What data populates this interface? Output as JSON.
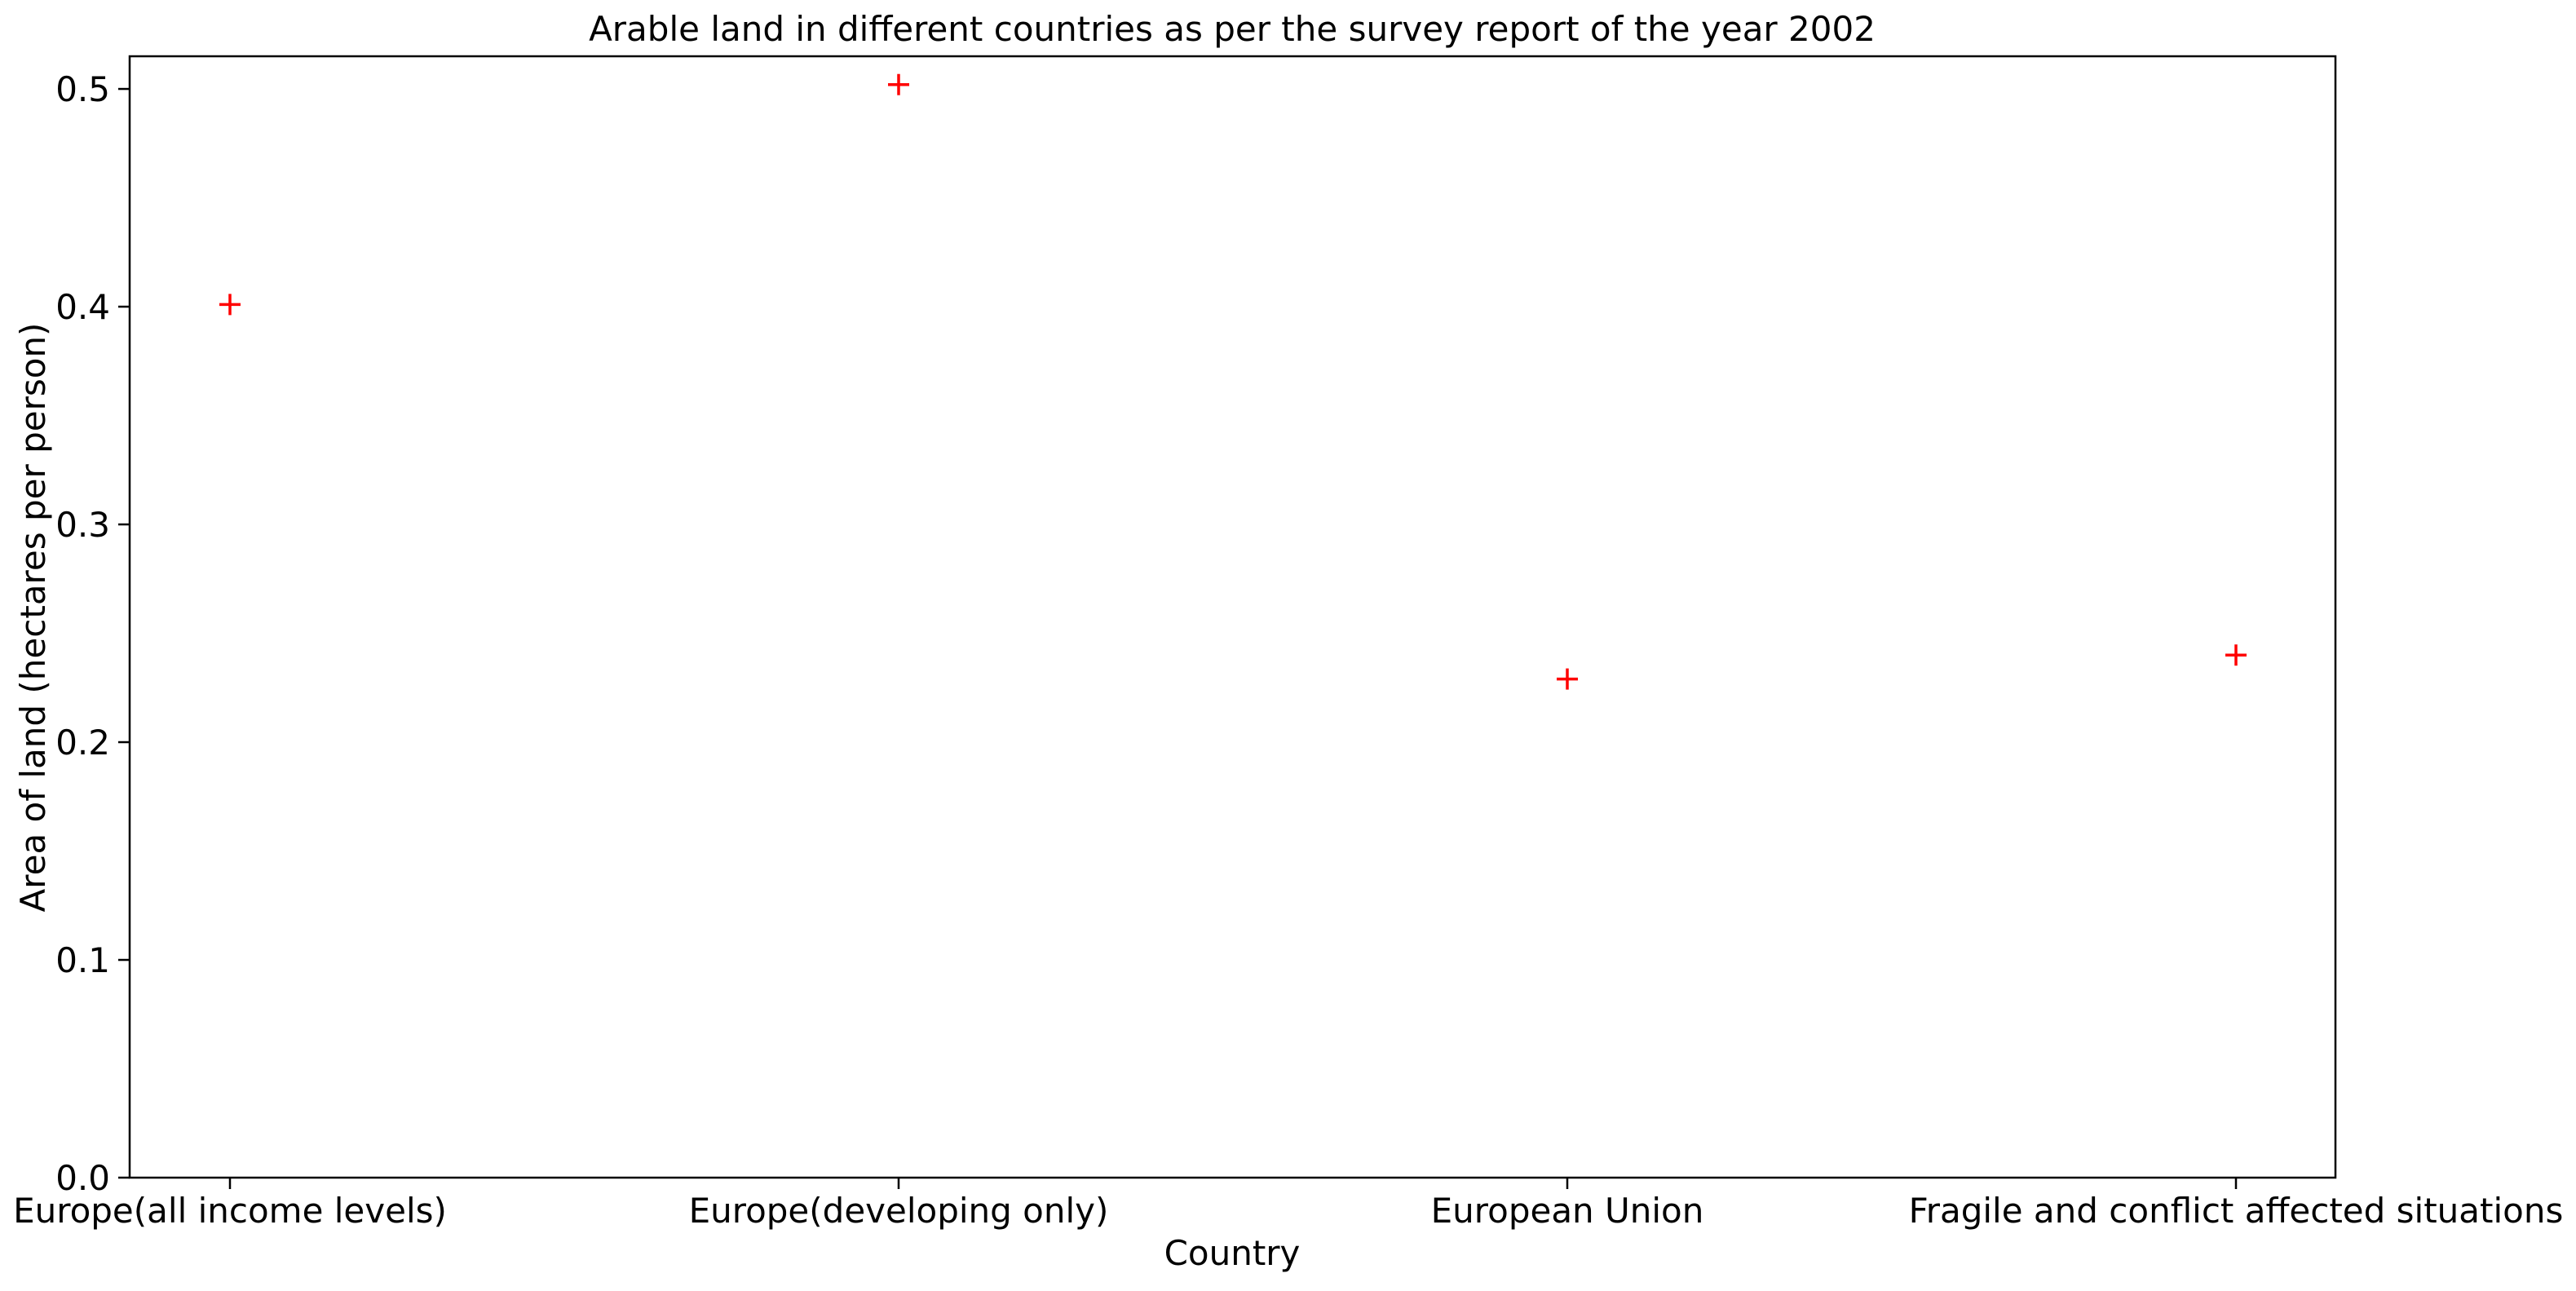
{
  "chart_data": {
    "type": "scatter",
    "title": "Arable land in different countries as per the survey report of the year 2002",
    "xlabel": "Country",
    "ylabel": "Area of land (hectares per person)",
    "categories": [
      "Europe(all income levels)",
      "Europe(developing only)",
      "European Union",
      "Fragile and conflict affected situations"
    ],
    "series": [
      {
        "values": [
          0.401,
          0.502,
          0.229,
          0.24
        ],
        "marker": "+",
        "color": "#ff0000"
      }
    ],
    "ylim": [
      0,
      0.515
    ],
    "yticks": [
      0.0,
      0.1,
      0.2,
      0.3,
      0.4,
      0.5
    ],
    "ytick_labels": [
      "0.0",
      "0.1",
      "0.2",
      "0.3",
      "0.4",
      "0.5"
    ],
    "grid": false,
    "legend": "none"
  }
}
